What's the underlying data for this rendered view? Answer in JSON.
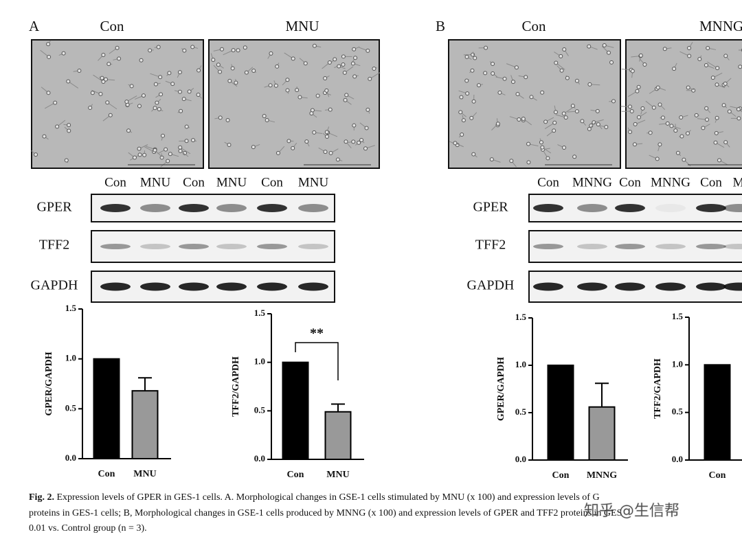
{
  "panels": [
    {
      "label": "A",
      "image_labels": [
        "Con",
        "MNU"
      ],
      "lanes": [
        "Con",
        "MNU",
        "Con",
        "MNU",
        "Con",
        "MNU"
      ],
      "blot_rows": [
        "GPER",
        "TFF2",
        "GAPDH"
      ]
    },
    {
      "label": "B",
      "image_labels": [
        "Con",
        "MNNG"
      ],
      "lanes": [
        "Con",
        "MNNG",
        "Con",
        "MNNG",
        "Con",
        "M"
      ],
      "blot_rows": [
        "GPER",
        "TFF2",
        "GAPDH"
      ]
    }
  ],
  "chart_data": [
    {
      "type": "bar",
      "ylabel": "GPER/GAPDH",
      "categories": [
        "Con",
        "MNU"
      ],
      "values": [
        1.0,
        0.68
      ],
      "errors": [
        null,
        0.13
      ],
      "colors": [
        "#000000",
        "#999999"
      ],
      "ylim": [
        0,
        1.5
      ],
      "yticks": [
        {
          "value": 0,
          "label": "0.0"
        },
        0.5,
        {
          "value": 1,
          "label": "1.0"
        },
        1.5
      ]
    },
    {
      "type": "bar",
      "ylabel": "TFF2/GAPDH",
      "categories": [
        "Con",
        "MNU"
      ],
      "values": [
        1.0,
        0.49
      ],
      "errors": [
        null,
        0.08
      ],
      "colors": [
        "#000000",
        "#999999"
      ],
      "ylim": [
        0,
        1.5
      ],
      "yticks": [
        {
          "value": 0,
          "label": "0.0"
        },
        0.5,
        {
          "value": 1,
          "label": "1.0"
        },
        1.5
      ],
      "significance": "**"
    },
    {
      "type": "bar",
      "ylabel": "GPER/GAPDH",
      "categories": [
        "Con",
        "MNNG"
      ],
      "values": [
        1.0,
        0.56
      ],
      "errors": [
        null,
        0.25
      ],
      "colors": [
        "#000000",
        "#999999"
      ],
      "ylim": [
        0,
        1.5
      ],
      "yticks": [
        {
          "value": 0,
          "label": "0.0"
        },
        0.5,
        {
          "value": 1,
          "label": "1.0"
        },
        1.5
      ]
    },
    {
      "type": "bar",
      "ylabel": "TFF2/GAPDH",
      "categories": [
        "Con"
      ],
      "values": [
        1.0
      ],
      "errors": [
        null
      ],
      "colors": [
        "#000000"
      ],
      "ylim": [
        0,
        1.5
      ],
      "yticks": [
        {
          "value": 0,
          "label": "0.0"
        },
        0.5,
        {
          "value": 1,
          "label": "1.0"
        },
        1.5
      ]
    }
  ],
  "caption": {
    "label": "Fig. 2.",
    "lines": [
      " Expression levels of GPER in GES-1 cells. A. Morphological changes in GSE-1 cells stimulated by MNU (x 100) and expression levels of G",
      "proteins in GES-1 cells; B, Morphological changes in GSE-1 cells produced by MNNG (x 100) and expression levels of GPER and TFF2 proteins in GES",
      "0.01 vs. Control group (n = 3)."
    ]
  },
  "watermark": "知乎 @生信帮"
}
